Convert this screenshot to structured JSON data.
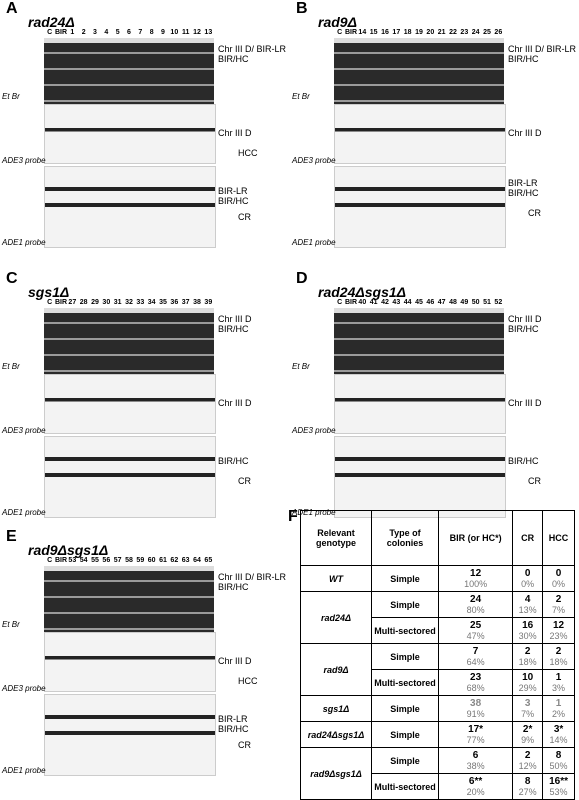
{
  "panels": [
    {
      "letter": "A",
      "title": "rad24Δ",
      "lanes": [
        "C",
        "BIR",
        "1",
        "2",
        "3",
        "4",
        "5",
        "6",
        "7",
        "8",
        "9",
        "10",
        "11",
        "12",
        "13"
      ],
      "labels": [
        "Chr III D/ BIR-LR",
        "BIR/HC",
        "Et Br",
        "Chr III D",
        "HCC",
        "ADE3  probe",
        "BIR-LR",
        "BIR/HC",
        "CR",
        "ADE1  probe"
      ]
    },
    {
      "letter": "B",
      "title": "rad9Δ",
      "lanes": [
        "C",
        "BIR",
        "14",
        "15",
        "16",
        "17",
        "18",
        "19",
        "20",
        "21",
        "22",
        "23",
        "24",
        "25",
        "26"
      ],
      "labels": [
        "Chr III D/ BIR-LR",
        "BIR/HC",
        "Et Br",
        "Chr III D",
        "ADE3  probe",
        "BIR-LR",
        "BIR/HC",
        "CR",
        "ADE1  probe"
      ]
    },
    {
      "letter": "C",
      "title": "sgs1Δ",
      "lanes": [
        "C",
        "BIR",
        "27",
        "28",
        "29",
        "30",
        "31",
        "32",
        "33",
        "34",
        "35",
        "36",
        "37",
        "38",
        "39"
      ],
      "labels": [
        "Chr III D",
        "BIR/HC",
        "Et Br",
        "Chr III D",
        "ADE3  probe",
        "BIR/HC",
        "CR",
        "ADE1  probe"
      ]
    },
    {
      "letter": "D",
      "title": "rad24Δsgs1Δ",
      "lanes": [
        "C",
        "BIR",
        "40",
        "41",
        "42",
        "43",
        "44",
        "45",
        "46",
        "47",
        "48",
        "49",
        "50",
        "51",
        "52"
      ],
      "labels": [
        "Chr III D",
        "BIR/HC",
        "Et Br",
        "Chr III D",
        "ADE3  probe",
        "BIR/HC",
        "CR",
        "ADE1  probe"
      ]
    },
    {
      "letter": "E",
      "title": "rad9Δsgs1Δ",
      "lanes": [
        "C",
        "BIR",
        "53",
        "54",
        "55",
        "56",
        "57",
        "58",
        "59",
        "60",
        "61",
        "62",
        "63",
        "64",
        "65"
      ],
      "labels": [
        "Chr III D/ BIR-LR",
        "BIR/HC",
        "Et Br",
        "Chr III D",
        "HCC",
        "ADE3  probe",
        "BIR-LR",
        "BIR/HC",
        "CR",
        "ADE1  probe"
      ]
    }
  ],
  "table": {
    "letter": "F",
    "headers": [
      "Relevant genotype",
      "Type of colonies",
      "BIR (or HC*)",
      "CR",
      "HCC"
    ],
    "groups": [
      {
        "genotype": "WT",
        "rows": [
          {
            "type": "Simple",
            "cells": [
              [
                "12",
                "100%"
              ],
              [
                "0",
                "0%"
              ],
              [
                "0",
                "0%"
              ]
            ]
          }
        ]
      },
      {
        "genotype": "rad24Δ",
        "rows": [
          {
            "type": "Simple",
            "cells": [
              [
                "24",
                "80%"
              ],
              [
                "4",
                "13%"
              ],
              [
                "2",
                "7%"
              ]
            ]
          },
          {
            "type": "Multi-sectored",
            "cells": [
              [
                "25",
                "47%"
              ],
              [
                "16",
                "30%"
              ],
              [
                "12",
                "23%"
              ]
            ]
          }
        ]
      },
      {
        "genotype": "rad9Δ",
        "rows": [
          {
            "type": "Simple",
            "cells": [
              [
                "7",
                "64%"
              ],
              [
                "2",
                "18%"
              ],
              [
                "2",
                "18%"
              ]
            ]
          },
          {
            "type": "Multi-sectored",
            "cells": [
              [
                "23",
                "68%"
              ],
              [
                "10",
                "29%"
              ],
              [
                "1",
                "3%"
              ]
            ]
          }
        ]
      },
      {
        "genotype": "sgs1Δ",
        "color": "#888888",
        "rows": [
          {
            "type": "Simple",
            "cells": [
              [
                "38",
                "91%"
              ],
              [
                "3",
                "7%"
              ],
              [
                "1",
                "2%"
              ]
            ]
          }
        ]
      },
      {
        "genotype": "rad24Δsgs1Δ",
        "rows": [
          {
            "type": "Simple",
            "cells": [
              [
                "17*",
                "77%"
              ],
              [
                "2*",
                "9%"
              ],
              [
                "3*",
                "14%"
              ]
            ]
          }
        ]
      },
      {
        "genotype": "rad9Δsgs1Δ",
        "rows": [
          {
            "type": "Simple",
            "cells": [
              [
                "6",
                "38%"
              ],
              [
                "2",
                "12%"
              ],
              [
                "8",
                "50%"
              ]
            ]
          },
          {
            "type": "Multi-sectored",
            "cells": [
              [
                "6**",
                "20%"
              ],
              [
                "8",
                "27%"
              ],
              [
                "16**",
                "53%"
              ]
            ]
          }
        ]
      }
    ]
  }
}
